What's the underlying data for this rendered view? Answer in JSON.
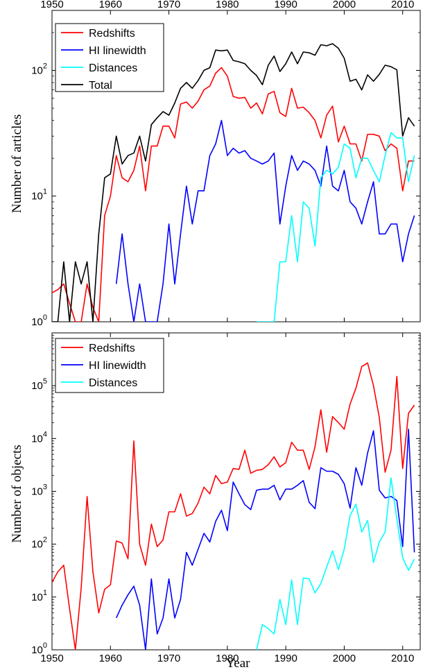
{
  "chart_data": [
    {
      "type": "line",
      "panel": "top",
      "ylabel": "Number of articles",
      "xlabel": "",
      "x_tick_labels_top": [
        "1950",
        "1960",
        "1970",
        "1980",
        "1990",
        "2000",
        "2010"
      ],
      "xlim": [
        1950,
        2013
      ],
      "ylim": [
        1,
        300
      ],
      "yscale": "log",
      "y_tick_labels": [
        {
          "value": 1,
          "base": "10",
          "exp": "0"
        },
        {
          "value": 10,
          "base": "10",
          "exp": "1"
        },
        {
          "value": 100,
          "base": "10",
          "exp": "2"
        }
      ],
      "legend_position": "top-left",
      "series": [
        {
          "name": "Redshifts",
          "color": "#ff0000",
          "x": [
            1950,
            1951,
            1952,
            1953,
            1954,
            1955,
            1956,
            1957,
            1958,
            1959,
            1960,
            1961,
            1962,
            1963,
            1964,
            1965,
            1966,
            1967,
            1968,
            1969,
            1970,
            1971,
            1972,
            1973,
            1974,
            1975,
            1976,
            1977,
            1978,
            1979,
            1980,
            1981,
            1982,
            1983,
            1984,
            1985,
            1986,
            1987,
            1988,
            1989,
            1990,
            1991,
            1992,
            1993,
            1994,
            1995,
            1996,
            1997,
            1998,
            1999,
            2000,
            2001,
            2002,
            2003,
            2004,
            2005,
            2006,
            2007,
            2008,
            2009,
            2010,
            2011,
            2012
          ],
          "values": [
            1.7,
            1.8,
            2,
            1.4,
            1,
            1,
            2,
            1.3,
            1,
            7,
            10,
            21,
            14,
            13,
            16,
            25,
            11,
            25,
            25,
            36,
            36,
            29,
            54,
            56,
            50,
            57,
            70,
            75,
            95,
            105,
            90,
            62,
            60,
            61,
            50,
            55,
            45,
            65,
            68,
            46,
            43,
            72,
            50,
            51,
            46,
            40,
            29,
            44,
            52,
            27,
            36,
            26,
            26,
            19,
            31,
            31,
            30,
            23,
            26,
            24,
            11,
            19,
            19
          ]
        },
        {
          "name": "HI linewidth",
          "color": "#0000ff",
          "x": [
            1961,
            1962,
            1963,
            1964,
            1965,
            1966,
            1967,
            1968,
            1969,
            1970,
            1971,
            1972,
            1973,
            1974,
            1975,
            1976,
            1977,
            1978,
            1979,
            1980,
            1981,
            1982,
            1983,
            1984,
            1985,
            1986,
            1987,
            1988,
            1989,
            1990,
            1991,
            1992,
            1993,
            1994,
            1995,
            1996,
            1997,
            1998,
            1999,
            2000,
            2001,
            2002,
            2003,
            2004,
            2005,
            2006,
            2007,
            2008,
            2009,
            2010,
            2011,
            2012
          ],
          "values": [
            2,
            5,
            2,
            1,
            2,
            1,
            1,
            1,
            2,
            6,
            2,
            5,
            12,
            6,
            11,
            11,
            21,
            26,
            40,
            21,
            24,
            22,
            23,
            20,
            19,
            18,
            19,
            22,
            6,
            12,
            21,
            16,
            19,
            18,
            16,
            12,
            25,
            12,
            11,
            16,
            9,
            8,
            6,
            9,
            13,
            5,
            5,
            6,
            6,
            3,
            5,
            7
          ]
        },
        {
          "name": "Distances",
          "color": "#00ffff",
          "x": [
            1985,
            1986,
            1987,
            1988,
            1989,
            1990,
            1991,
            1992,
            1993,
            1994,
            1995,
            1996,
            1997,
            1998,
            1999,
            2000,
            2001,
            2002,
            2003,
            2004,
            2005,
            2006,
            2007,
            2008,
            2009,
            2010,
            2011,
            2012
          ],
          "values": [
            1,
            1,
            1,
            1,
            3,
            3,
            7,
            3,
            9,
            8,
            4,
            14,
            16,
            15,
            17,
            26,
            24,
            14,
            20,
            20,
            16,
            13,
            21,
            32,
            29,
            29,
            13,
            21
          ]
        },
        {
          "name": "Total",
          "color": "#000000",
          "x": [
            1950,
            1951,
            1952,
            1953,
            1954,
            1955,
            1956,
            1957,
            1958,
            1959,
            1960,
            1961,
            1962,
            1963,
            1964,
            1965,
            1966,
            1967,
            1968,
            1969,
            1970,
            1971,
            1972,
            1973,
            1974,
            1975,
            1976,
            1977,
            1978,
            1979,
            1980,
            1981,
            1982,
            1983,
            1984,
            1985,
            1986,
            1987,
            1988,
            1989,
            1990,
            1991,
            1992,
            1993,
            1994,
            1995,
            1996,
            1997,
            1998,
            1999,
            2000,
            2001,
            2002,
            2003,
            2004,
            2005,
            2006,
            2007,
            2008,
            2009,
            2010,
            2011,
            2012
          ],
          "values": [
            1,
            1,
            3,
            1,
            3,
            2,
            3,
            1,
            5,
            14,
            15,
            30,
            18,
            21,
            22,
            30,
            19,
            37,
            42,
            47,
            44,
            55,
            72,
            80,
            72,
            83,
            100,
            105,
            145,
            143,
            145,
            120,
            117,
            113,
            100,
            91,
            77,
            110,
            130,
            98,
            113,
            140,
            113,
            140,
            138,
            132,
            160,
            157,
            163,
            150,
            125,
            82,
            85,
            70,
            92,
            82,
            93,
            110,
            107,
            101,
            30,
            42,
            36
          ]
        }
      ]
    },
    {
      "type": "line",
      "panel": "bottom",
      "ylabel": "Number of objects",
      "xlabel": "Year",
      "x_tick_labels": [
        "1950",
        "1960",
        "1970",
        "1980",
        "1990",
        "2000",
        "2010"
      ],
      "xlim": [
        1950,
        2013
      ],
      "ylim": [
        1,
        1000000
      ],
      "yscale": "log",
      "y_tick_labels": [
        {
          "value": 1,
          "base": "10",
          "exp": "0"
        },
        {
          "value": 10,
          "base": "10",
          "exp": "1"
        },
        {
          "value": 100,
          "base": "10",
          "exp": "2"
        },
        {
          "value": 1000,
          "base": "10",
          "exp": "3"
        },
        {
          "value": 10000,
          "base": "10",
          "exp": "4"
        },
        {
          "value": 100000,
          "base": "10",
          "exp": "5"
        }
      ],
      "legend_position": "top-left",
      "series": [
        {
          "name": "Redshifts",
          "color": "#ff0000",
          "x": [
            1950,
            1951,
            1952,
            1953,
            1954,
            1955,
            1956,
            1957,
            1958,
            1959,
            1960,
            1961,
            1962,
            1963,
            1964,
            1965,
            1966,
            1967,
            1968,
            1969,
            1970,
            1971,
            1972,
            1973,
            1974,
            1975,
            1976,
            1977,
            1978,
            1979,
            1980,
            1981,
            1982,
            1983,
            1984,
            1985,
            1986,
            1987,
            1988,
            1989,
            1990,
            1991,
            1992,
            1993,
            1994,
            1995,
            1996,
            1997,
            1998,
            1999,
            2000,
            2001,
            2002,
            2003,
            2004,
            2005,
            2006,
            2007,
            2008,
            2009,
            2010,
            2011,
            2012
          ],
          "values": [
            19,
            30,
            40,
            6,
            1,
            15,
            800,
            30,
            5,
            14,
            17,
            115,
            105,
            53,
            9000,
            100,
            40,
            240,
            90,
            120,
            410,
            410,
            900,
            340,
            380,
            600,
            1200,
            900,
            2000,
            1400,
            1500,
            2700,
            2600,
            6000,
            2200,
            2500,
            2600,
            3200,
            4500,
            2900,
            3500,
            8500,
            6000,
            6000,
            2600,
            7000,
            35000,
            5500,
            26000,
            20000,
            15000,
            45000,
            90000,
            230000,
            270000,
            100000,
            25000,
            2300,
            6000,
            150000,
            2700,
            30000,
            43000
          ]
        },
        {
          "name": "HI linewidth",
          "color": "#0000ff",
          "x": [
            1961,
            1962,
            1963,
            1964,
            1965,
            1966,
            1967,
            1968,
            1969,
            1970,
            1971,
            1972,
            1973,
            1974,
            1975,
            1976,
            1977,
            1978,
            1979,
            1980,
            1981,
            1982,
            1983,
            1984,
            1985,
            1986,
            1987,
            1988,
            1989,
            1990,
            1991,
            1992,
            1993,
            1994,
            1995,
            1996,
            1997,
            1998,
            1999,
            2000,
            2001,
            2002,
            2003,
            2004,
            2005,
            2006,
            2007,
            2008,
            2009,
            2010,
            2011,
            2012
          ],
          "values": [
            4,
            7,
            11,
            16,
            7,
            1,
            22,
            2,
            4,
            22,
            4,
            9,
            70,
            40,
            80,
            160,
            110,
            270,
            440,
            180,
            1500,
            900,
            560,
            450,
            1050,
            1100,
            1100,
            1300,
            690,
            1100,
            1100,
            1300,
            1600,
            620,
            470,
            2800,
            2400,
            2400,
            2100,
            1400,
            480,
            2800,
            1300,
            5300,
            14000,
            1050,
            750,
            800,
            670,
            90,
            15000,
            70
          ]
        },
        {
          "name": "Distances",
          "color": "#00ffff",
          "x": [
            1985,
            1986,
            1987,
            1988,
            1989,
            1990,
            1991,
            1992,
            1993,
            1994,
            1995,
            1996,
            1997,
            1998,
            1999,
            2000,
            2001,
            2002,
            2003,
            2004,
            2005,
            2006,
            2007,
            2008,
            2009,
            2010,
            2011,
            2012
          ],
          "values": [
            1,
            3,
            2.5,
            2,
            9,
            3,
            21,
            3,
            23,
            22,
            12,
            18,
            37,
            75,
            33,
            80,
            350,
            570,
            170,
            280,
            45,
            110,
            170,
            1800,
            300,
            55,
            32,
            52
          ]
        }
      ]
    }
  ]
}
